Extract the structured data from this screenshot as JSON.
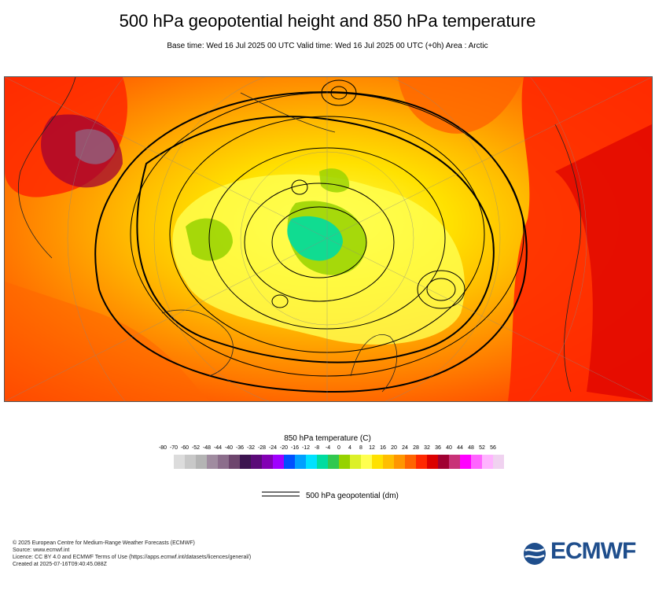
{
  "header": {
    "title": "500 hPa geopotential height and 850 hPa temperature",
    "subtitle": "Base time: Wed 16 Jul 2025 00 UTC Valid time: Wed 16 Jul 2025 00 UTC (+0h) Area : Arctic"
  },
  "legend": {
    "title": "850 hPa temperature (C)",
    "ticks": [
      "-80",
      "-70",
      "-60",
      "-52",
      "-48",
      "-44",
      "-40",
      "-36",
      "-32",
      "-28",
      "-24",
      "-20",
      "-16",
      "-12",
      "-8",
      "-4",
      "0",
      "4",
      "8",
      "12",
      "16",
      "20",
      "24",
      "28",
      "32",
      "36",
      "40",
      "44",
      "48",
      "52",
      "56"
    ],
    "colors": [
      "#dcdcdc",
      "#c8c8c8",
      "#b4b4b4",
      "#a08ca0",
      "#8c6e8c",
      "#6e466e",
      "#3c1450",
      "#5a0a78",
      "#8200b4",
      "#a000ff",
      "#0050ff",
      "#00a0ff",
      "#00e1ff",
      "#00dca0",
      "#32c850",
      "#96d200",
      "#dcf028",
      "#ffff50",
      "#ffe100",
      "#ffbe00",
      "#ff9600",
      "#ff6400",
      "#ff2800",
      "#dc0000",
      "#a00032",
      "#c83278",
      "#ff00ff",
      "#ff64ff",
      "#ffb4ff",
      "#f0d2f0",
      "#e6e6e6"
    ],
    "contour_label": "500 hPa geopotential (dm)"
  },
  "footer": {
    "line1": "© 2025 European Centre for Medium-Range Weather Forecasts (ECMWF)",
    "line2": "Source: www.ecmwf.int",
    "line3": "Licence: CC BY 4.0 and ECMWF Terms of Use (https://apps.ecmwf.int/datasets/licences/general/)",
    "line4": "Created at 2025-07-16T09:40:45.088Z"
  },
  "logo": {
    "text": "ECMWF",
    "color": "#1f4e8c"
  }
}
